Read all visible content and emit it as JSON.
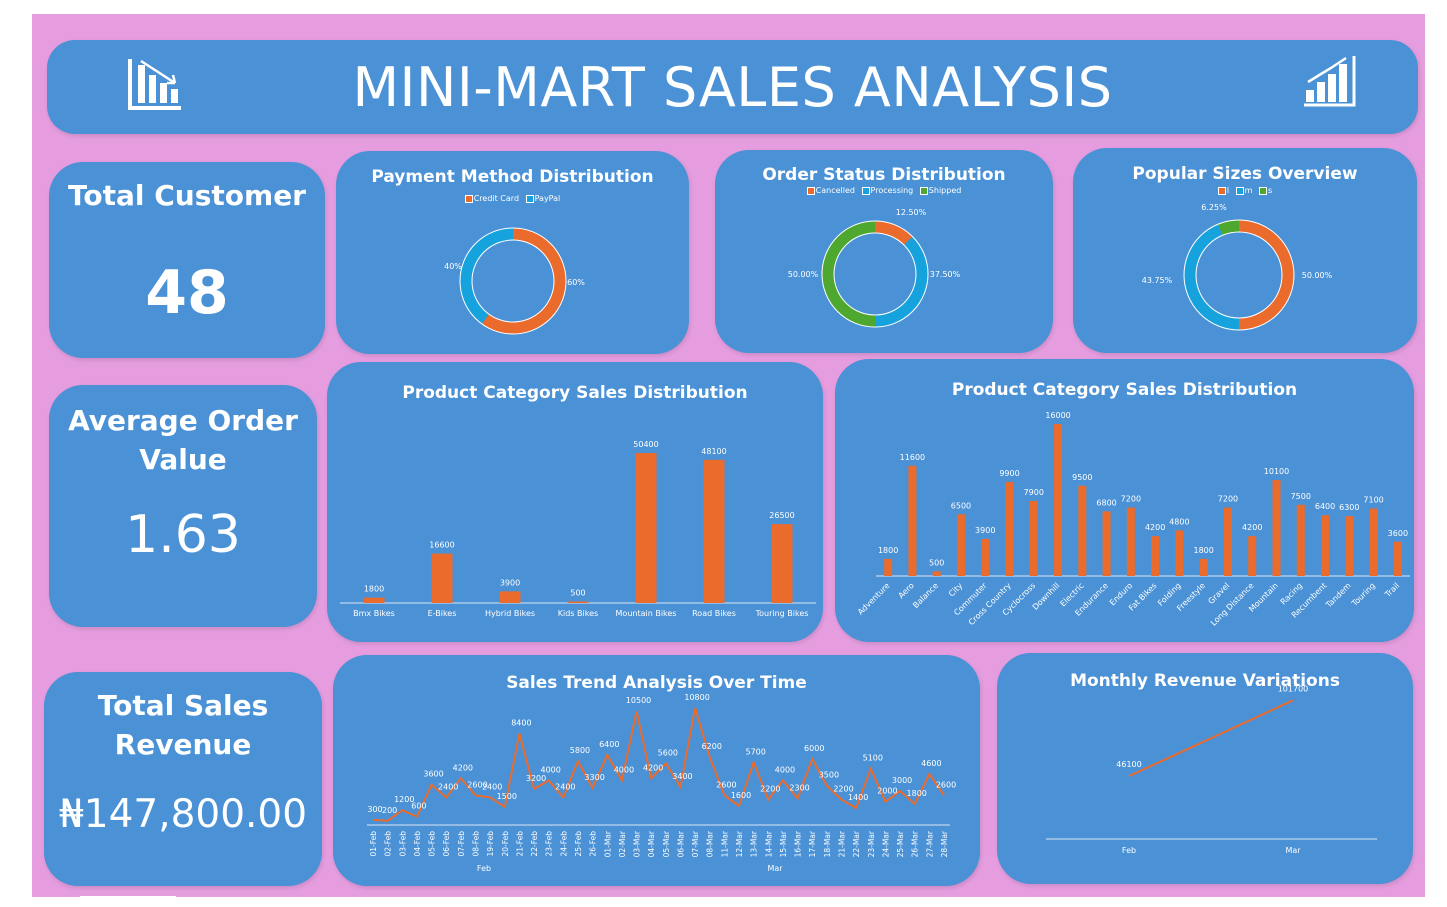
{
  "header": {
    "title": "MINI-MART SALES ANALYSIS",
    "left_icon": "bar-chart-decreasing-icon",
    "right_icon": "bar-chart-increasing-icon"
  },
  "kpis": {
    "total_customer": {
      "label": "Total Customer",
      "value": "48"
    },
    "average_order": {
      "label_line1": "Average Order",
      "label_line2": "Value",
      "value": "1.63"
    },
    "total_revenue": {
      "label_line1": "Total Sales",
      "label_line2": "Revenue",
      "value": "₦147,800.00"
    }
  },
  "colors": {
    "background": "#e59ddf",
    "card": "#4a91d6",
    "orange": "#ea6b2c",
    "cyan": "#16a3dd",
    "green": "#4ea72e",
    "white": "#ffffff"
  },
  "chart_data": [
    {
      "id": "payment",
      "type": "pie",
      "title": "Payment Method Distribution",
      "legend": [
        "Credit Card",
        "PayPal"
      ],
      "values": [
        60,
        40
      ],
      "labels": [
        "60%",
        "40%"
      ],
      "colors": [
        "#ea6b2c",
        "#16a3dd"
      ]
    },
    {
      "id": "order_status",
      "type": "pie",
      "title": "Order Status Distribution",
      "legend": [
        "Cancelled",
        "Processing",
        "Shipped"
      ],
      "values": [
        12.5,
        37.5,
        50
      ],
      "labels": [
        "12.50%",
        "37.50%",
        "50.00%"
      ],
      "colors": [
        "#ea6b2c",
        "#16a3dd",
        "#4ea72e"
      ]
    },
    {
      "id": "sizes",
      "type": "pie",
      "title": "Popular Sizes Overview",
      "legend": [
        "l",
        "m",
        "s"
      ],
      "values": [
        50,
        43.75,
        6.25
      ],
      "labels": [
        "50.00%",
        "43.75%",
        "6.25%"
      ],
      "colors": [
        "#ea6b2c",
        "#16a3dd",
        "#4ea72e"
      ]
    },
    {
      "id": "category_main",
      "type": "bar",
      "title": "Product Category Sales Distribution",
      "categories": [
        "Bmx Bikes",
        "E-Bikes",
        "Hybrid Bikes",
        "Kids Bikes",
        "Mountain Bikes",
        "Road Bikes",
        "Touring Bikes"
      ],
      "values": [
        1800,
        16600,
        3900,
        500,
        50400,
        48100,
        26500
      ]
    },
    {
      "id": "category_sub",
      "type": "bar",
      "title": "Product Category Sales Distribution",
      "categories": [
        "Adventure",
        "Aero",
        "Balance",
        "City",
        "Commuter",
        "Cross Country",
        "Cyclocross",
        "Downhill",
        "Electric",
        "Endurance",
        "Enduro",
        "Fat Bikes",
        "Folding",
        "Freestyle",
        "Gravel",
        "Long Distance",
        "Mountain",
        "Racing",
        "Recumbent",
        "Tandem",
        "Touring",
        "Trail"
      ],
      "values": [
        1800,
        11600,
        500,
        6500,
        3900,
        9900,
        7900,
        16000,
        9500,
        6800,
        7200,
        4200,
        4800,
        1800,
        7200,
        4200,
        10100,
        7500,
        6400,
        6300,
        7100,
        3600
      ]
    },
    {
      "id": "trend",
      "type": "line",
      "title": "Sales Trend Analysis Over Time",
      "x": [
        "01-Feb",
        "02-Feb",
        "03-Feb",
        "04-Feb",
        "05-Feb",
        "06-Feb",
        "07-Feb",
        "08-Feb",
        "19-Feb",
        "20-Feb",
        "21-Feb",
        "22-Feb",
        "23-Feb",
        "24-Feb",
        "25-Feb",
        "26-Feb",
        "01-Mar",
        "02-Mar",
        "03-Mar",
        "04-Mar",
        "05-Mar",
        "06-Mar",
        "07-Mar",
        "08-Mar",
        "11-Mar",
        "12-Mar",
        "13-Mar",
        "14-Mar",
        "15-Mar",
        "16-Mar",
        "17-Mar",
        "18-Mar",
        "21-Mar",
        "22-Mar",
        "23-Mar",
        "24-Mar",
        "25-Mar",
        "26-Mar",
        "27-Mar",
        "28-Mar"
      ],
      "values": [
        300,
        200,
        1200,
        600,
        3600,
        2400,
        4200,
        2600,
        2400,
        1500,
        8400,
        3200,
        4000,
        2400,
        5800,
        3300,
        6400,
        4000,
        10500,
        4200,
        5600,
        3400,
        10800,
        6200,
        2600,
        1600,
        5700,
        2200,
        4000,
        2300,
        6000,
        3500,
        2200,
        1400,
        5100,
        2000,
        3000,
        1800,
        4600,
        2600
      ],
      "groups": [
        "Feb",
        "Mar"
      ]
    },
    {
      "id": "monthly",
      "type": "line",
      "title": "Monthly Revenue Variations",
      "x": [
        "Feb",
        "Mar"
      ],
      "values": [
        46100,
        101700
      ]
    }
  ]
}
